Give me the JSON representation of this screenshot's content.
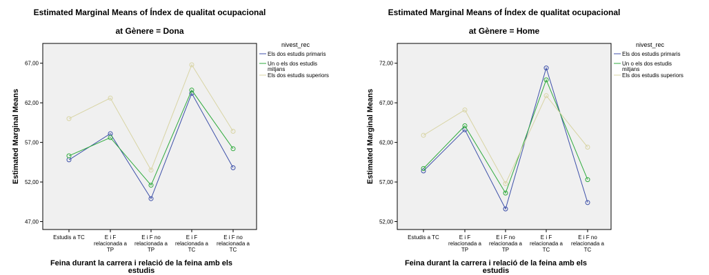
{
  "chart_data": [
    {
      "type": "line",
      "title": "Estimated Marginal Means of Índex de qualitat ocupacional",
      "subtitle": "at Gènere = Dona",
      "xlabel": "Feina durant la carrera i relació de la feina amb els estudis",
      "ylabel": "Estimated Marginal Means",
      "categories": [
        [
          "Estudis a TC"
        ],
        [
          "E i F",
          "relacionada a",
          "TP"
        ],
        [
          "E i F no",
          "relacionada a",
          "TP"
        ],
        [
          "E i F",
          "relacionada a",
          "TC"
        ],
        [
          "E i F no",
          "relacionada a",
          "TC"
        ]
      ],
      "ylim": [
        46.0,
        69.5
      ],
      "yticks": [
        "47,00",
        "52,00",
        "57,00",
        "62,00",
        "67,00"
      ],
      "ytick_values": [
        47,
        52,
        57,
        62,
        67
      ],
      "legend_title": "nivest_rec",
      "legend_position": "right",
      "series": [
        {
          "name": [
            "Els dos estudis primaris"
          ],
          "color": "#3c4fa8",
          "values": [
            54.8,
            58.1,
            49.9,
            63.2,
            53.8
          ]
        },
        {
          "name": [
            "Un o els dos estudis",
            "mitjans"
          ],
          "color": "#2eaa3c",
          "values": [
            55.3,
            57.6,
            51.6,
            63.6,
            56.2
          ]
        },
        {
          "name": [
            "Els dos estudis superiors"
          ],
          "color": "#d8d4a4",
          "values": [
            60.0,
            62.6,
            53.5,
            66.8,
            58.4
          ]
        }
      ]
    },
    {
      "type": "line",
      "title": "Estimated Marginal Means of Índex de qualitat ocupacional",
      "subtitle": "at Gènere = Home",
      "xlabel": "Feina durant la carrera i relació de la feina amb els estudis",
      "ylabel": "Estimated Marginal Means",
      "categories": [
        [
          "Estudis a TC"
        ],
        [
          "E i F",
          "relacionada a",
          "TP"
        ],
        [
          "E i F no",
          "relacionada a",
          "TP"
        ],
        [
          "E i F",
          "relacionada a",
          "TC"
        ],
        [
          "E i F no",
          "relacionada a",
          "TC"
        ]
      ],
      "ylim": [
        51.0,
        74.5
      ],
      "yticks": [
        "52,00",
        "57,00",
        "62,00",
        "67,00",
        "72,00"
      ],
      "ytick_values": [
        52,
        57,
        62,
        67,
        72
      ],
      "legend_title": "nivest_rec",
      "legend_position": "right",
      "series": [
        {
          "name": [
            "Els dos estudis primaris"
          ],
          "color": "#3c4fa8",
          "values": [
            58.4,
            63.6,
            53.6,
            71.4,
            54.4
          ]
        },
        {
          "name": [
            "Un o els dos estudis",
            "mitjans"
          ],
          "color": "#2eaa3c",
          "values": [
            58.7,
            64.1,
            55.6,
            69.9,
            57.3
          ]
        },
        {
          "name": [
            "Els dos estudis superiors"
          ],
          "color": "#d8d4a4",
          "values": [
            62.9,
            66.1,
            56.8,
            67.9,
            61.4
          ]
        }
      ]
    }
  ]
}
